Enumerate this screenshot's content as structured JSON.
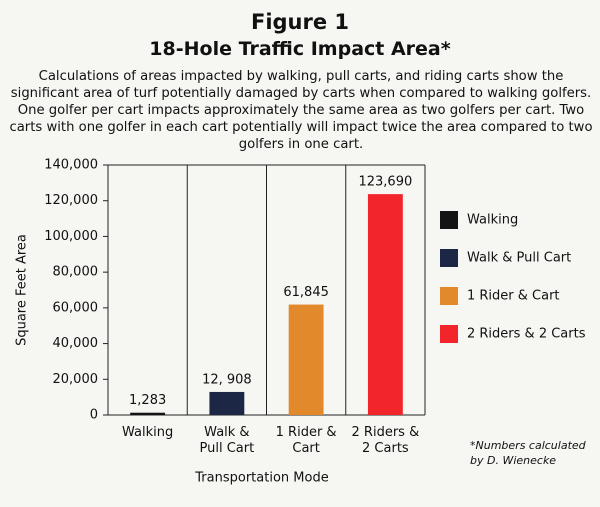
{
  "chart_data": {
    "type": "bar",
    "title": "Figure 1",
    "subtitle": "18-Hole Traffic Impact Area*",
    "description": "Calculations of areas impacted by walking, pull carts, and riding carts show the significant area of turf potentially damaged by carts when compared to walking golfers. One golfer per cart impacts approximately the same area as two golfers per cart. Two carts with one golfer in each cart potentially will impact twice the area compared to two golfers in one cart.",
    "categories": [
      "Walking",
      "Walk & Pull Cart",
      "1 Rider & Cart",
      "2 Riders & 2 Carts"
    ],
    "values": [
      1283,
      12908,
      61845,
      123690
    ],
    "value_labels": [
      "1,283",
      "12, 908",
      "61,845",
      "123,690"
    ],
    "colors": [
      "#141414",
      "#1c2745",
      "#e2892c",
      "#f2262a"
    ],
    "y_label": "Square Feet Area",
    "x_label": "Transportation Mode",
    "note": "*Numbers calculated by D. Wienecke",
    "ylim": [
      0,
      140000
    ],
    "yticks": [
      0,
      {
        "value": 20000,
        "label": "20,000"
      },
      {
        "value": 40000,
        "label": "40,000"
      },
      {
        "value": 60000,
        "label": "60,000"
      },
      {
        "value": 80000,
        "label": "80,000"
      },
      {
        "value": 100000,
        "label": "100,000"
      },
      {
        "value": 120000,
        "label": "120,000"
      },
      {
        "value": 140000,
        "label": "140,000"
      }
    ],
    "legend": "right"
  }
}
